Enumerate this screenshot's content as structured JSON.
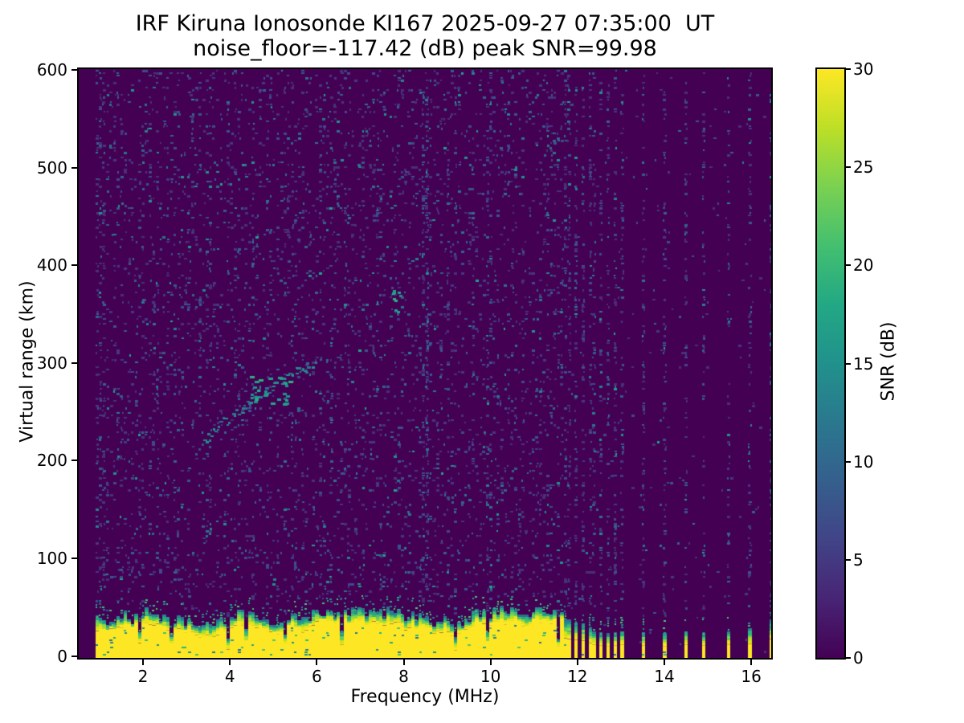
{
  "header": {
    "title_line1": "IRF Kiruna Ionosonde KI167 2025-09-27 07:35:00  UT",
    "title_line2": "noise_floor=-117.42 (dB) peak SNR=99.98"
  },
  "axes": {
    "xlabel": "Frequency (MHz)",
    "ylabel": "Virtual range (km)"
  },
  "chart_data": {
    "type": "heatmap",
    "title": "IRF Kiruna Ionosonde KI167 2025-09-27 07:35:00  UT",
    "subtitle": "noise_floor=-117.42 (dB) peak SNR=99.98",
    "station": "KI167",
    "timestamp_ut": "2025-09-27 07:35:00",
    "noise_floor_db": -117.42,
    "peak_snr_db": 99.98,
    "xlabel": "Frequency (MHz)",
    "ylabel": "Virtual range (km)",
    "xlim": [
      0.52,
      16.46
    ],
    "ylim": [
      -2,
      601
    ],
    "x_ticks": [
      2,
      4,
      6,
      8,
      10,
      12,
      14,
      16
    ],
    "y_ticks": [
      0,
      100,
      200,
      300,
      400,
      500,
      600
    ],
    "grid": false,
    "colormap": "viridis",
    "colormap_stops": [
      "#440154",
      "#482475",
      "#414487",
      "#355f8d",
      "#2a788e",
      "#21918c",
      "#22a884",
      "#44bf70",
      "#7ad151",
      "#bddf26",
      "#fde725"
    ],
    "background_color": "#440154",
    "colorbar": {
      "label": "SNR (dB)",
      "min": 0,
      "max": 30,
      "ticks": [
        0,
        5,
        10,
        15,
        20,
        25,
        30
      ],
      "position": "right"
    },
    "signal": {
      "seed": 167935,
      "freq_start_mhz": 0.9,
      "freq_end_mhz": 16.45,
      "freq_step_mhz": 0.0817,
      "continuous_band_max_mhz": 11.62,
      "ground_clutter_top_km_range": [
        15,
        36
      ],
      "ground_clutter_color": "#fde725",
      "stripe_frequencies_mhz": [
        11.67,
        11.8,
        11.94,
        12.09,
        12.24,
        12.37,
        12.52,
        12.65,
        12.79,
        12.96,
        13.48,
        13.94,
        14.43,
        14.91,
        15.45,
        15.93,
        16.42
      ],
      "stripe_strengths": [
        0.95,
        0.9,
        0.85,
        0.8,
        0.65,
        0.55,
        0.5,
        0.45,
        0.5,
        0.55,
        0.5,
        0.45,
        0.55,
        0.5,
        0.55,
        0.6,
        0.9
      ],
      "interference_bands_mhz": [
        {
          "freq": 8.43,
          "half_width": 0.09,
          "extra_density": 0.3
        },
        {
          "freq": 9.93,
          "half_width": 0.06,
          "extra_density": 0.1
        }
      ],
      "echo_trace_points": [
        [
          3.38,
          222
        ],
        [
          3.62,
          231
        ],
        [
          3.85,
          240
        ],
        [
          4.1,
          249
        ],
        [
          4.35,
          258
        ],
        [
          4.6,
          266
        ],
        [
          4.85,
          273
        ],
        [
          5.1,
          280
        ],
        [
          5.35,
          287
        ],
        [
          5.6,
          293
        ],
        [
          5.85,
          299
        ]
      ],
      "echo_bright_center": [
        4.9,
        273
      ],
      "echo_bright_spread": [
        0.45,
        14
      ],
      "echo_secondary_cluster": [
        7.8,
        365
      ],
      "noise_density": 0.145,
      "left_edge_dense_max_mhz": 1.12,
      "left_edge_density": 0.3,
      "noise_palette": [
        [
          "#483074",
          30
        ],
        [
          "#453781",
          22
        ],
        [
          "#3f4a8a",
          16
        ],
        [
          "#39568c",
          11
        ],
        [
          "#33628d",
          7
        ],
        [
          "#2c718e",
          5
        ],
        [
          "#27808e",
          3
        ],
        [
          "#21918c",
          2
        ],
        [
          "#1fa188",
          1
        ]
      ],
      "band_gradient": [
        "#fde725",
        "#e8e419",
        "#d0e11c",
        "#b0dd2f",
        "#8bd646",
        "#65cb5e",
        "#46c06f",
        "#31b57b",
        "#25a584",
        "#21918c",
        "#26818e",
        "#2c728e"
      ],
      "fringe_palette": [
        "#21918c",
        "#22a884",
        "#2cb17e",
        "#44bf70",
        "#54c568",
        "#35b779",
        "#26818e",
        "#2c728e"
      ],
      "echo_palette": [
        "#2c728e",
        "#26818e",
        "#21918c"
      ],
      "echo_bright_palette": [
        "#21918c",
        "#22a884",
        "#1fa188",
        "#2cb17e"
      ]
    }
  }
}
